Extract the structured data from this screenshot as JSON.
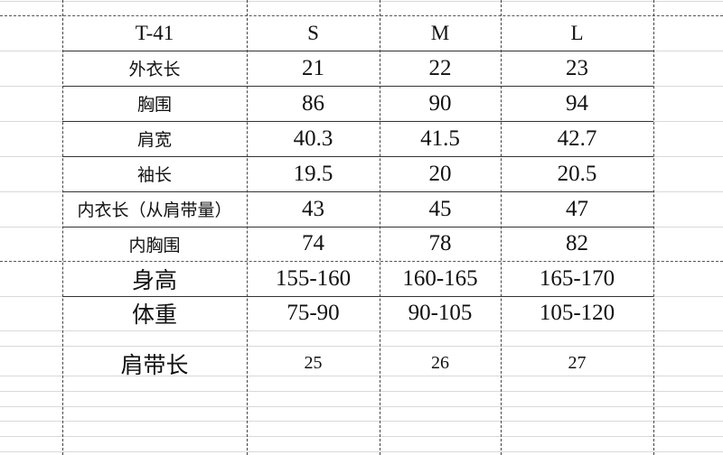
{
  "sheet": {
    "header": {
      "label": "T-41",
      "sizes": [
        "S",
        "M",
        "L"
      ]
    },
    "measure_rows": [
      {
        "label": "外衣长",
        "values": [
          "21",
          "22",
          "23"
        ]
      },
      {
        "label": "胸围",
        "values": [
          "86",
          "90",
          "94"
        ]
      },
      {
        "label": "肩宽",
        "values": [
          "40.3",
          "41.5",
          "42.7"
        ]
      },
      {
        "label": "袖长",
        "values": [
          "19.5",
          "20",
          "20.5"
        ]
      },
      {
        "label": "内衣长（从肩带量）",
        "values": [
          "43",
          "45",
          "47"
        ]
      },
      {
        "label": "内胸围",
        "values": [
          "74",
          "78",
          "82"
        ]
      }
    ],
    "fit_rows": [
      {
        "label": "身高",
        "values": [
          "155-160",
          "160-165",
          "165-170"
        ]
      },
      {
        "label": "体重",
        "values": [
          "75-90",
          "90-105",
          "105-120"
        ]
      }
    ],
    "strap_row": {
      "label": "肩带长",
      "values": [
        "25",
        "26",
        "27"
      ]
    }
  }
}
